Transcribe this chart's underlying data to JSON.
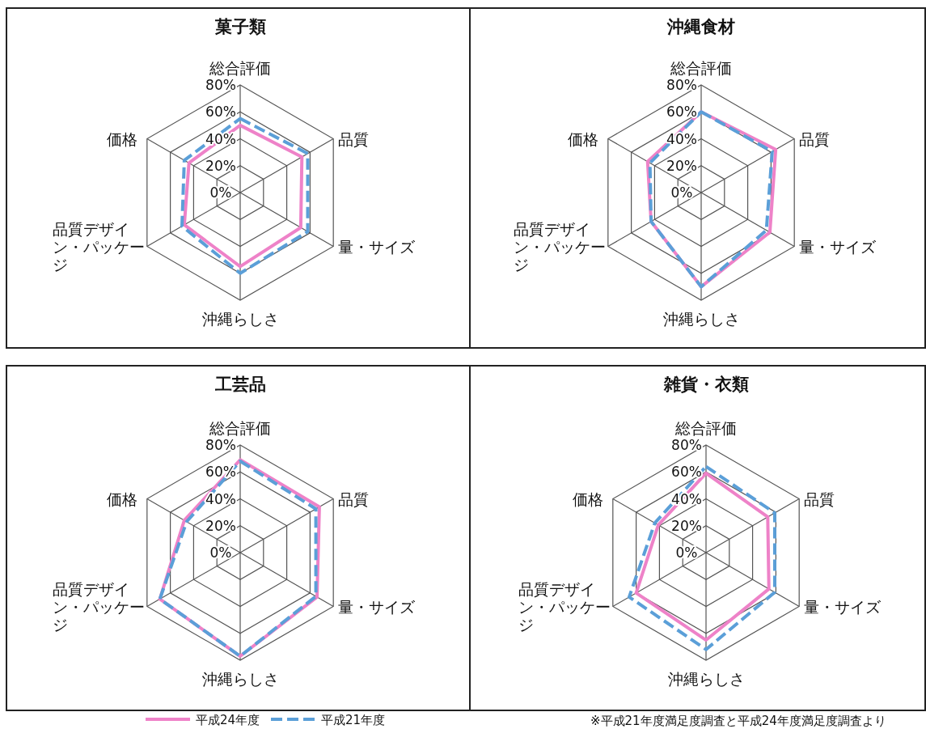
{
  "chart_data": [
    {
      "type": "radar",
      "title": "菓子類",
      "categories": [
        "総合評価",
        "品質",
        "量・サイズ",
        "沖縄らしさ",
        "品質デザイン・パッケージ",
        "価格"
      ],
      "ylim": [
        0,
        80
      ],
      "yticks": [
        {
          "value": 0,
          "label": "0%"
        },
        {
          "value": 20,
          "label": "20%"
        },
        {
          "value": 40,
          "label": "40%"
        },
        {
          "value": 60,
          "label": "60%"
        },
        {
          "value": 80,
          "label": "80%"
        }
      ],
      "legend": "bottom",
      "grid": true,
      "series": [
        {
          "name": "平成24年度",
          "color": "#ee82c8",
          "line_style": "solid",
          "values": [
            50,
            53,
            52,
            55,
            48,
            44
          ]
        },
        {
          "name": "平成21年度",
          "color": "#5b9fd8",
          "line_style": "dashed",
          "values": [
            55,
            58,
            58,
            60,
            50,
            48
          ]
        }
      ]
    },
    {
      "type": "radar",
      "title": "沖縄食材",
      "categories": [
        "総合評価",
        "品質",
        "量・サイズ",
        "沖縄らしさ",
        "品質デザイン・パッケージ",
        "価格"
      ],
      "ylim": [
        0,
        80
      ],
      "yticks": [
        {
          "value": 0,
          "label": "0%"
        },
        {
          "value": 20,
          "label": "20%"
        },
        {
          "value": 40,
          "label": "40%"
        },
        {
          "value": 60,
          "label": "60%"
        },
        {
          "value": 80,
          "label": "80%"
        }
      ],
      "grid": true,
      "series": [
        {
          "color": "#ee82c8",
          "line_style": "solid",
          "values": [
            60,
            64,
            59,
            70,
            43,
            46
          ]
        },
        {
          "color": "#5b9fd8",
          "line_style": "dashed",
          "values": [
            60,
            61,
            56,
            70,
            43,
            44
          ]
        }
      ]
    },
    {
      "type": "radar",
      "title": "工芸品",
      "categories": [
        "総合評価",
        "品質",
        "量・サイズ",
        "沖縄らしさ",
        "品質デザイン・パッケージ",
        "価格"
      ],
      "ylim": [
        0,
        80
      ],
      "yticks": [
        {
          "value": 0,
          "label": "0%"
        },
        {
          "value": 20,
          "label": "20%"
        },
        {
          "value": 40,
          "label": "40%"
        },
        {
          "value": 60,
          "label": "60%"
        },
        {
          "value": 80,
          "label": "80%"
        }
      ],
      "grid": true,
      "series": [
        {
          "color": "#ee82c8",
          "line_style": "solid",
          "values": [
            69,
            68,
            66,
            77,
            69,
            48
          ]
        },
        {
          "color": "#5b9fd8",
          "line_style": "dashed",
          "values": [
            68,
            65,
            65,
            77,
            69,
            46
          ]
        }
      ]
    },
    {
      "type": "radar",
      "title": "雑貨・衣類",
      "categories": [
        "総合評価",
        "品質",
        "量・サイズ",
        "沖縄らしさ",
        "品質デザイン・パッケージ",
        "価格"
      ],
      "ylim": [
        0,
        80
      ],
      "yticks": [
        {
          "value": 0,
          "label": "0%"
        },
        {
          "value": 20,
          "label": "20%"
        },
        {
          "value": 40,
          "label": "40%"
        },
        {
          "value": 60,
          "label": "60%"
        },
        {
          "value": 80,
          "label": "80%"
        }
      ],
      "grid": true,
      "annotations": [
        "※平成21年度満足度調査と平成24年度満足度調査より"
      ],
      "series": [
        {
          "color": "#ee82c8",
          "line_style": "solid",
          "values": [
            59,
            53,
            54,
            65,
            60,
            41
          ]
        },
        {
          "color": "#5b9fd8",
          "line_style": "dashed",
          "values": [
            64,
            59,
            59,
            72,
            66,
            44
          ]
        }
      ]
    }
  ]
}
